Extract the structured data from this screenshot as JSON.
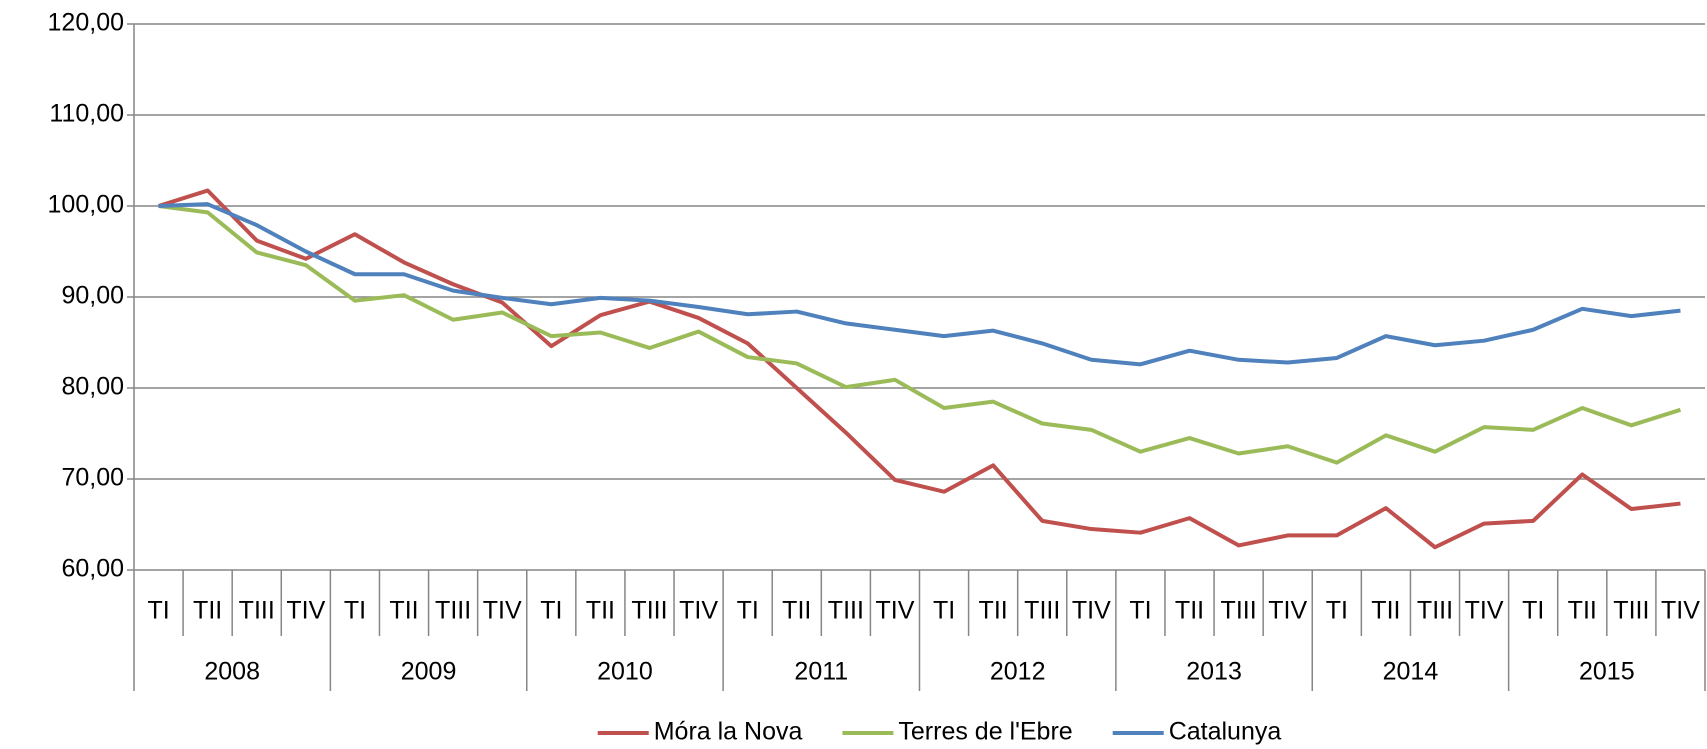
{
  "chart_data": {
    "type": "line",
    "categories": [
      "TI",
      "TII",
      "TIII",
      "TIV",
      "TI",
      "TII",
      "TIII",
      "TIV",
      "TI",
      "TII",
      "TIII",
      "TIV",
      "TI",
      "TII",
      "TIII",
      "TIV",
      "TI",
      "TII",
      "TIII",
      "TIV",
      "TI",
      "TII",
      "TIII",
      "TIV",
      "TI",
      "TII",
      "TIII",
      "TIV",
      "TI",
      "TII",
      "TIII",
      "TIV"
    ],
    "category_groups": [
      "2008",
      "2009",
      "2010",
      "2011",
      "2012",
      "2013",
      "2014",
      "2015"
    ],
    "series": [
      {
        "name": "Móra la Nova",
        "color": "#c0504d",
        "values": [
          100,
          101.7,
          96.2,
          94.2,
          96.9,
          93.8,
          91.4,
          89.4,
          84.6,
          88.0,
          89.5,
          87.7,
          84.9,
          80.0,
          75.1,
          69.9,
          68.6,
          71.5,
          65.4,
          64.5,
          64.1,
          65.7,
          62.7,
          63.8,
          63.8,
          66.8,
          62.5,
          65.1,
          65.4,
          70.5,
          66.7,
          67.3
        ]
      },
      {
        "name": "Terres de l'Ebre",
        "color": "#9bbb59",
        "values": [
          100,
          99.3,
          94.9,
          93.5,
          89.6,
          90.2,
          87.5,
          88.3,
          85.7,
          86.1,
          84.4,
          86.2,
          83.4,
          82.7,
          80.1,
          80.9,
          77.8,
          78.5,
          76.1,
          75.4,
          73.0,
          74.5,
          72.8,
          73.6,
          71.8,
          74.8,
          73.0,
          75.7,
          75.4,
          77.8,
          75.9,
          77.6
        ]
      },
      {
        "name": "Catalunya",
        "color": "#4f81bd",
        "values": [
          100,
          100.2,
          97.9,
          95.0,
          92.5,
          92.5,
          90.7,
          89.9,
          89.2,
          89.9,
          89.6,
          88.9,
          88.1,
          88.4,
          87.1,
          86.4,
          85.7,
          86.3,
          84.9,
          83.1,
          82.6,
          84.1,
          83.1,
          82.8,
          83.3,
          85.7,
          84.7,
          85.2,
          86.4,
          88.7,
          87.9,
          88.5
        ]
      }
    ],
    "ylim": [
      60,
      120
    ],
    "yticks": [
      {
        "value": 60,
        "label": "60,00"
      },
      {
        "value": 70,
        "label": "70,00"
      },
      {
        "value": 80,
        "label": "80,00"
      },
      {
        "value": 90,
        "label": "90,00"
      },
      {
        "value": 100,
        "label": "100,00"
      },
      {
        "value": 110,
        "label": "110,00"
      },
      {
        "value": 120,
        "label": "120,00"
      }
    ],
    "grid": true,
    "legend": "bottom"
  }
}
